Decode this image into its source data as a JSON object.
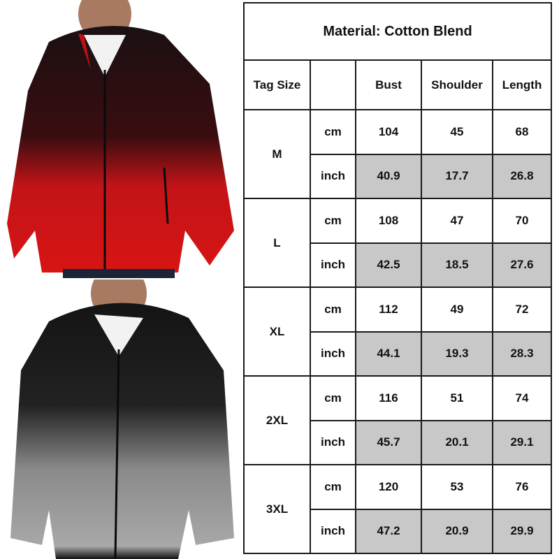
{
  "images": [
    {
      "name": "red gradient hoodie",
      "colors": {
        "top": "#1a1012",
        "bottom": "#d81414"
      }
    },
    {
      "name": "grey gradient hoodie",
      "colors": {
        "top": "#141414",
        "bottom": "#a8a8a8"
      }
    }
  ],
  "table": {
    "title": "Material: Cotton Blend",
    "headers": [
      "Tag Size",
      "",
      "Bust",
      "Shoulder",
      "Length"
    ],
    "shade_color": "#c8c8c8",
    "sizes": [
      {
        "size": "M",
        "rows": [
          {
            "unit": "cm",
            "values": [
              "104",
              "45",
              "68"
            ]
          },
          {
            "unit": "inch",
            "values": [
              "40.9",
              "17.7",
              "26.8"
            ]
          }
        ]
      },
      {
        "size": "L",
        "rows": [
          {
            "unit": "cm",
            "values": [
              "108",
              "47",
              "70"
            ]
          },
          {
            "unit": "inch",
            "values": [
              "42.5",
              "18.5",
              "27.6"
            ]
          }
        ]
      },
      {
        "size": "XL",
        "rows": [
          {
            "unit": "cm",
            "values": [
              "112",
              "49",
              "72"
            ]
          },
          {
            "unit": "inch",
            "values": [
              "44.1",
              "19.3",
              "28.3"
            ]
          }
        ]
      },
      {
        "size": "2XL",
        "rows": [
          {
            "unit": "cm",
            "values": [
              "116",
              "51",
              "74"
            ]
          },
          {
            "unit": "inch",
            "values": [
              "45.7",
              "20.1",
              "29.1"
            ]
          }
        ]
      },
      {
        "size": "3XL",
        "rows": [
          {
            "unit": "cm",
            "values": [
              "120",
              "53",
              "76"
            ]
          },
          {
            "unit": "inch",
            "values": [
              "47.2",
              "20.9",
              "29.9"
            ]
          }
        ]
      }
    ]
  }
}
